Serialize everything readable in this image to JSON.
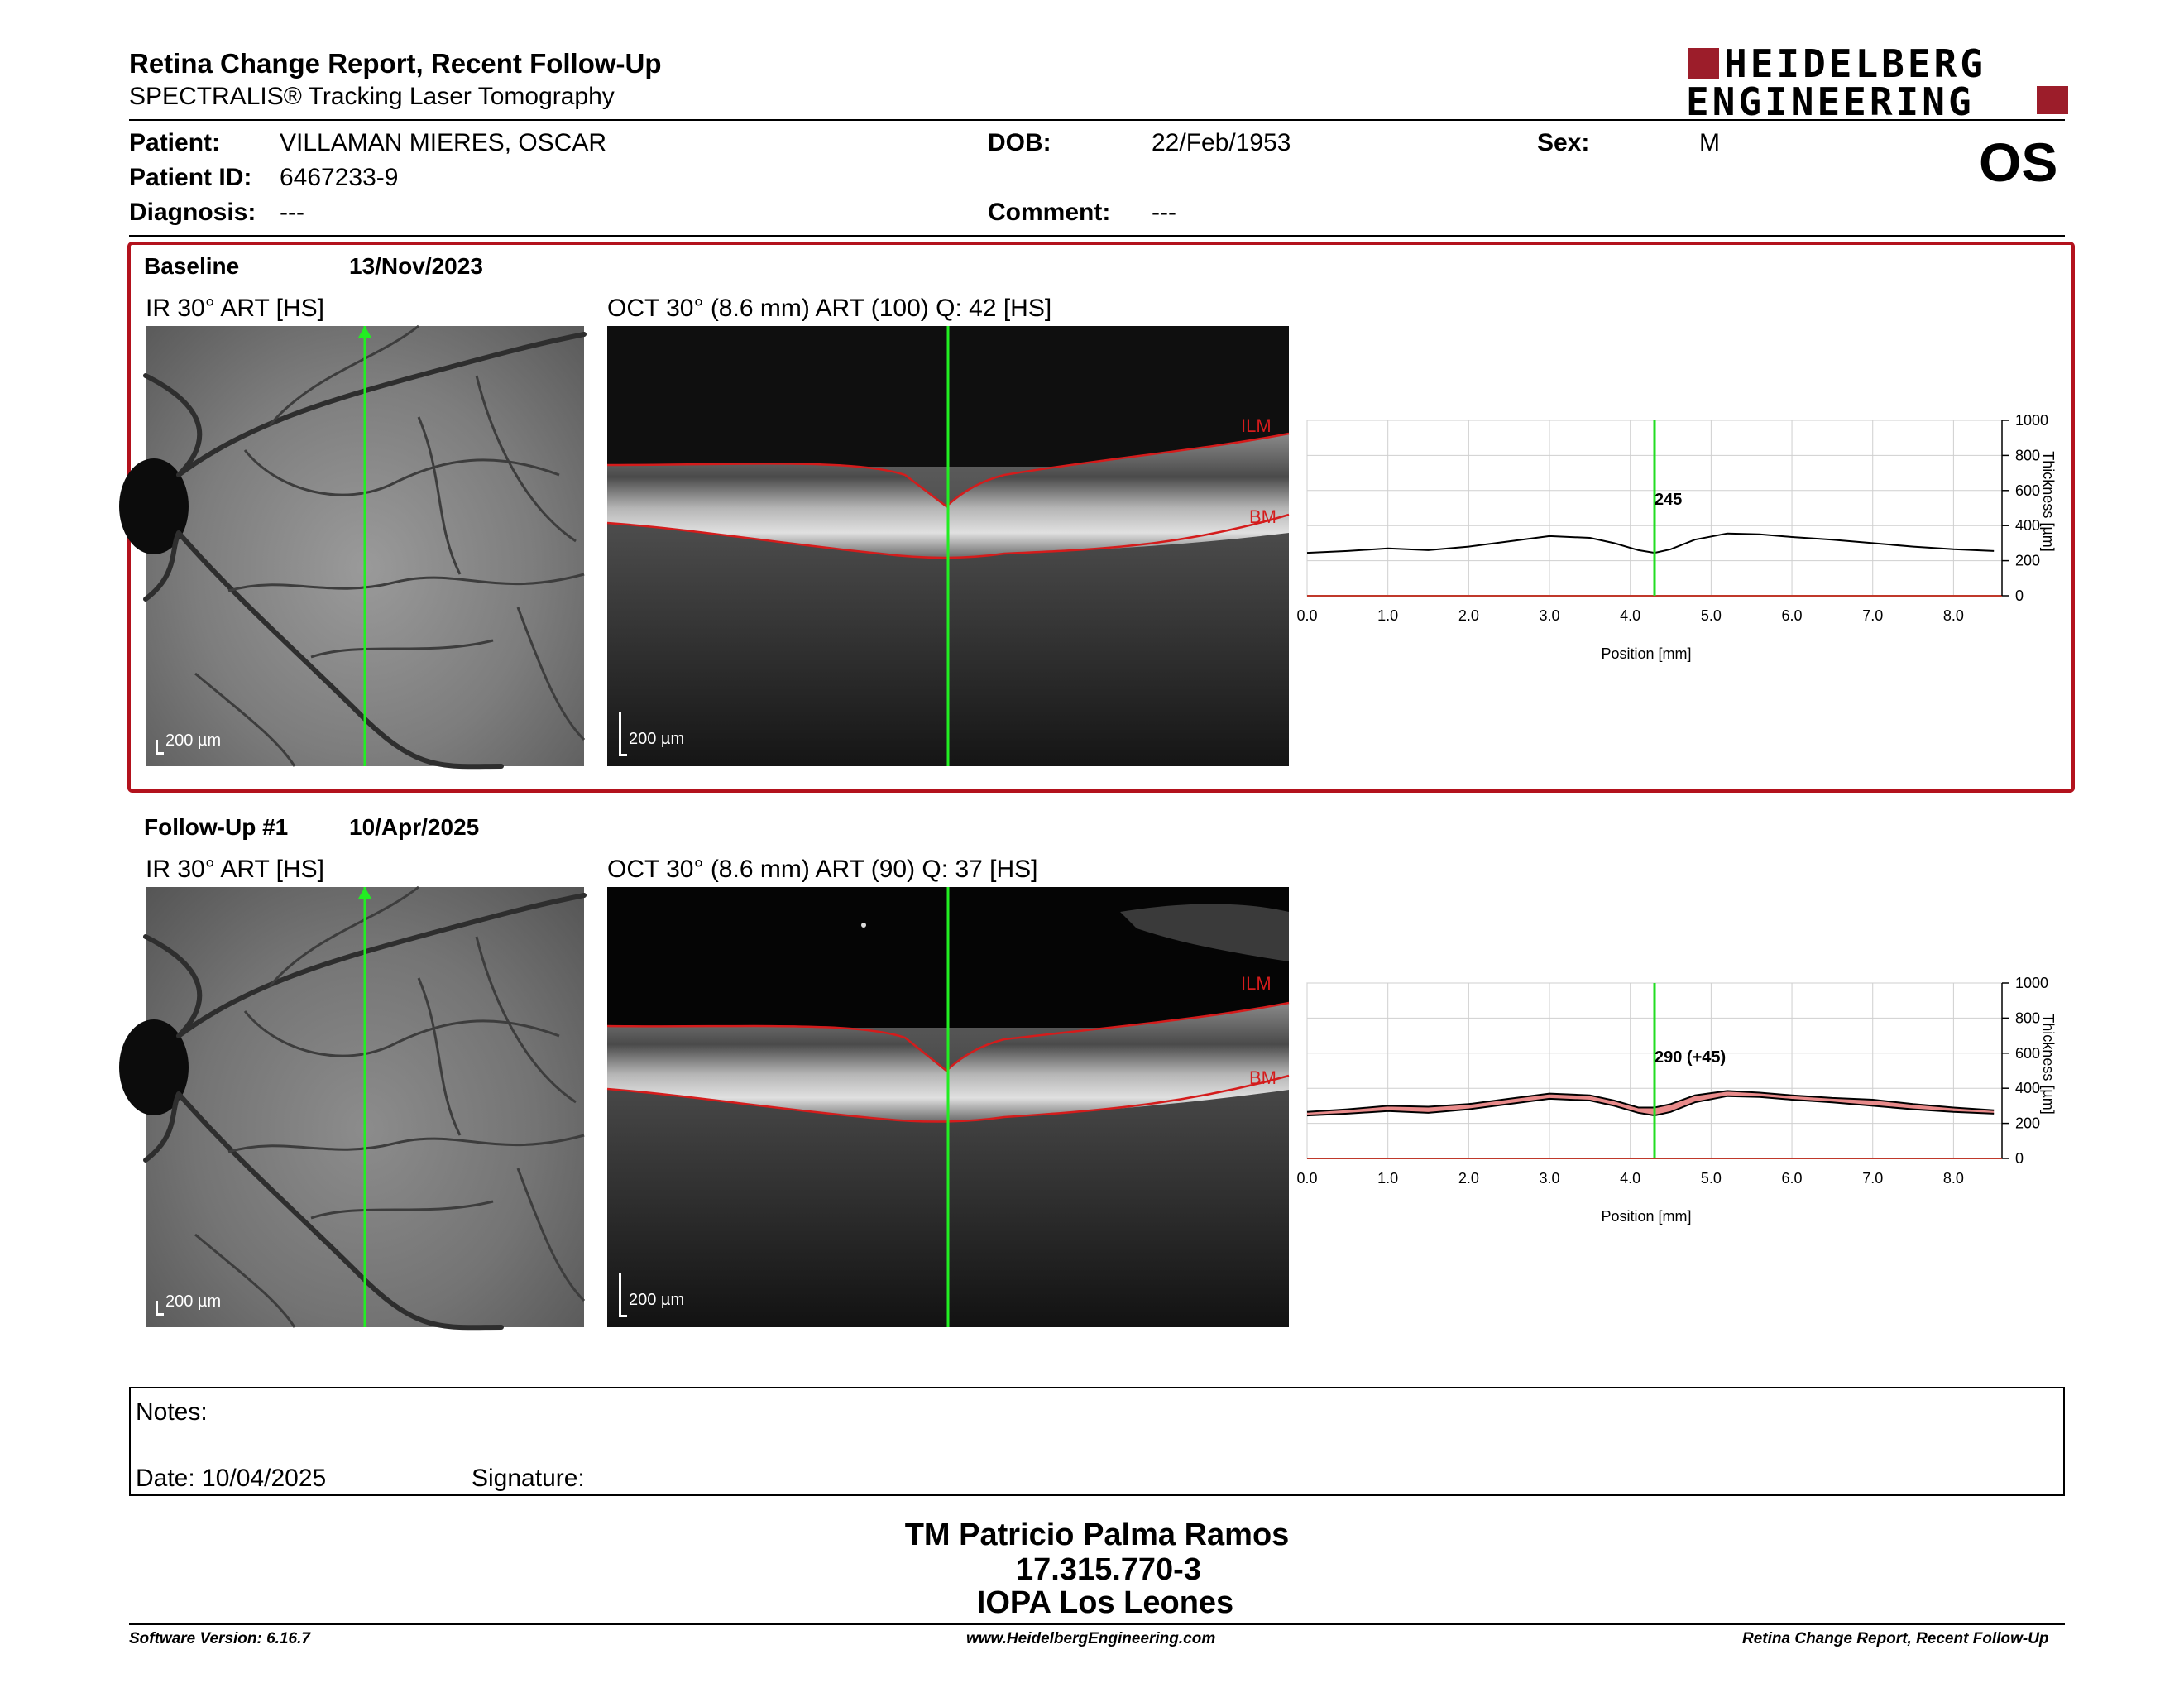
{
  "header": {
    "title": "Retina Change Report, Recent Follow-Up",
    "subtitle": "SPECTRALIS® Tracking Laser Tomography",
    "logo_line1": "HEIDELBERG",
    "logo_line2": "ENGINEERING",
    "eye": "OS"
  },
  "patient": {
    "patient_label": "Patient:",
    "patient_value": "VILLAMAN MIERES, OSCAR",
    "id_label": "Patient ID:",
    "id_value": "6467233-9",
    "diagnosis_label": "Diagnosis:",
    "diagnosis_value": "---",
    "dob_label": "DOB:",
    "dob_value": "22/Feb/1953",
    "comment_label": "Comment:",
    "comment_value": "---",
    "sex_label": "Sex:",
    "sex_value": "M"
  },
  "baseline": {
    "label": "Baseline",
    "date": "13/Nov/2023",
    "ir_caption": "IR 30° ART [HS]",
    "oct_caption": "OCT 30° (8.6 mm) ART (100) Q: 42 [HS]",
    "scale_label": "200 µm",
    "ilm_label": "ILM",
    "bm_label": "BM",
    "thickness_label": "245"
  },
  "followup": {
    "label": "Follow-Up #1",
    "date": "10/Apr/2025",
    "ir_caption": "IR 30° ART [HS]",
    "oct_caption": "OCT 30° (8.6 mm) ART (90) Q: 37 [HS]",
    "scale_label": "200 µm",
    "ilm_label": "ILM",
    "bm_label": "BM",
    "thickness_label": "290 (+45)"
  },
  "chart_data": [
    {
      "type": "line",
      "title": "",
      "xlabel": "Position [mm]",
      "ylabel": "Thickness [µm]",
      "xlim": [
        0.0,
        8.6
      ],
      "ylim": [
        0,
        1000
      ],
      "x_ticks": [
        "0.0",
        "1.0",
        "2.0",
        "3.0",
        "4.0",
        "5.0",
        "6.0",
        "7.0",
        "8.0"
      ],
      "y_ticks": [
        "0",
        "200",
        "400",
        "600",
        "800",
        "1000"
      ],
      "grid": true,
      "marker_position": 4.3,
      "marker_label": "245",
      "series": [
        {
          "x": [
            0.0,
            0.5,
            1.0,
            1.5,
            2.0,
            2.5,
            3.0,
            3.5,
            3.8,
            4.1,
            4.3,
            4.5,
            4.8,
            5.2,
            5.6,
            6.0,
            6.5,
            7.0,
            7.5,
            8.0,
            8.5
          ],
          "y": [
            245,
            255,
            270,
            260,
            280,
            310,
            340,
            330,
            300,
            260,
            245,
            265,
            320,
            355,
            350,
            335,
            320,
            300,
            280,
            265,
            255
          ]
        }
      ],
      "colors": {
        "line": "#000000",
        "marker": "#22dd22"
      }
    },
    {
      "type": "area",
      "title": "",
      "xlabel": "Position [mm]",
      "ylabel": "Thickness [µm]",
      "xlim": [
        0.0,
        8.6
      ],
      "ylim": [
        0,
        1000
      ],
      "x_ticks": [
        "0.0",
        "1.0",
        "2.0",
        "3.0",
        "4.0",
        "5.0",
        "6.0",
        "7.0",
        "8.0"
      ],
      "y_ticks": [
        "0",
        "200",
        "400",
        "600",
        "800",
        "1000"
      ],
      "grid": true,
      "marker_position": 4.3,
      "marker_label": "290 (+45)",
      "series": [
        {
          "x": [
            0.0,
            0.5,
            1.0,
            1.5,
            2.0,
            2.5,
            3.0,
            3.5,
            3.8,
            4.1,
            4.3,
            4.5,
            4.8,
            5.2,
            5.6,
            6.0,
            6.5,
            7.0,
            7.5,
            8.0,
            8.5
          ],
          "y": [
            265,
            280,
            300,
            295,
            310,
            340,
            370,
            360,
            330,
            290,
            290,
            310,
            360,
            385,
            375,
            360,
            345,
            335,
            310,
            290,
            275
          ]
        },
        {
          "x": [
            0.0,
            0.5,
            1.0,
            1.5,
            2.0,
            2.5,
            3.0,
            3.5,
            3.8,
            4.1,
            4.3,
            4.5,
            4.8,
            5.2,
            5.6,
            6.0,
            6.5,
            7.0,
            7.5,
            8.0,
            8.5
          ],
          "y": [
            245,
            255,
            270,
            260,
            280,
            310,
            340,
            330,
            300,
            260,
            245,
            265,
            320,
            355,
            350,
            335,
            320,
            300,
            280,
            265,
            255
          ]
        }
      ],
      "colors": {
        "line": "#000000",
        "fill": "#e88a8a",
        "marker": "#22dd22"
      }
    }
  ],
  "notes": {
    "label": "Notes:",
    "date_label": "Date: 10/04/2025",
    "signature_label": "Signature:"
  },
  "signatory": {
    "name": "TM Patricio Palma Ramos",
    "rut": "17.315.770-3",
    "clinic": "IOPA Los Leones"
  },
  "footer": {
    "software": "Software Version: 6.16.7",
    "website": "www.HeidelbergEngineering.com",
    "report": "Retina Change Report, Recent Follow-Up"
  }
}
